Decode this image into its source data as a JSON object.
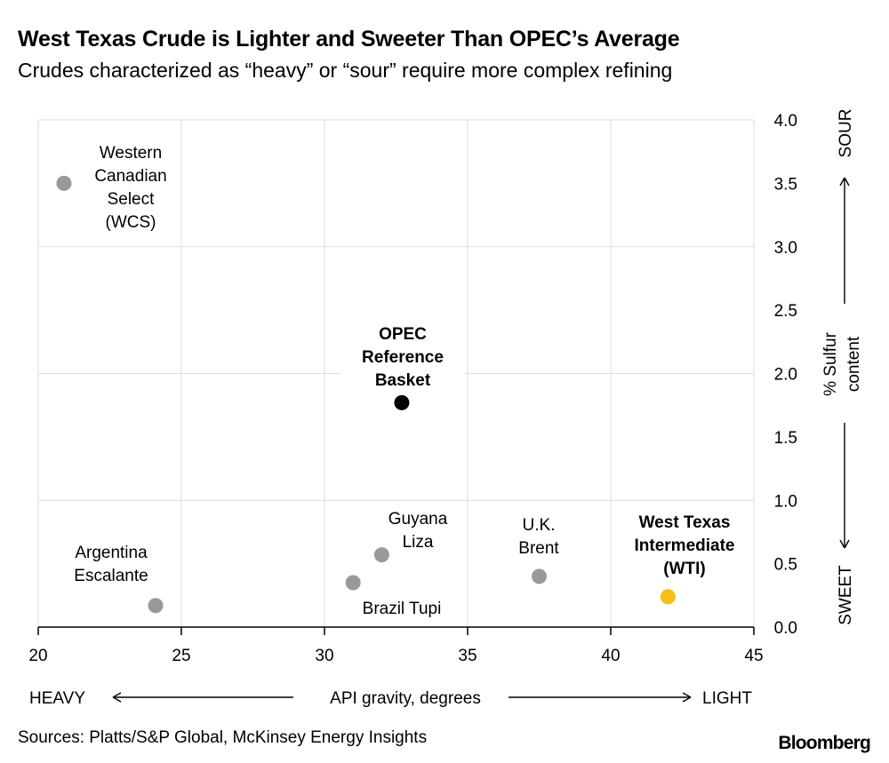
{
  "header": {
    "title": "West Texas Crude is Lighter and Sweeter Than OPEC’s Average",
    "subtitle": "Crudes characterized as “heavy” or “sour” require more complex refining"
  },
  "footer": {
    "source": "Sources: Platts/S&P Global, McKinsey Energy Insights",
    "logo": "Bloomberg"
  },
  "chart_data": {
    "type": "scatter",
    "xlabel": "API gravity, degrees",
    "ylabel": "% Sulfur content",
    "x_left_label": "HEAVY",
    "x_right_label": "LIGHT",
    "y_top_label": "SOUR",
    "y_bottom_label": "SWEET",
    "xlim": [
      20,
      45
    ],
    "ylim": [
      0,
      4
    ],
    "x_ticks": [
      "20",
      "25",
      "30",
      "35",
      "40",
      "45"
    ],
    "y_ticks": [
      "0.0",
      "0.5",
      "1.0",
      "1.5",
      "2.0",
      "2.5",
      "3.0",
      "3.5",
      "4.0"
    ],
    "grid": true,
    "points": [
      {
        "label": [
          "Western",
          "Canadian",
          "Select",
          "(WCS)"
        ],
        "x": 20.9,
        "y": 3.5,
        "color": "#999999",
        "bold": false
      },
      {
        "label": [
          "OPEC",
          "Reference",
          "Basket"
        ],
        "x": 32.7,
        "y": 1.77,
        "color": "#000000",
        "bold": true
      },
      {
        "label": [
          "Argentina",
          "Escalante"
        ],
        "x": 24.1,
        "y": 0.17,
        "color": "#999999",
        "bold": false
      },
      {
        "label": [
          "Guyana",
          "Liza"
        ],
        "x": 32.0,
        "y": 0.57,
        "color": "#999999",
        "bold": false
      },
      {
        "label": [
          "Brazil Tupi"
        ],
        "x": 31.0,
        "y": 0.35,
        "color": "#999999",
        "bold": false
      },
      {
        "label": [
          "U.K.",
          "Brent"
        ],
        "x": 37.5,
        "y": 0.4,
        "color": "#999999",
        "bold": false
      },
      {
        "label": [
          "West Texas",
          "Intermediate",
          "(WTI)"
        ],
        "x": 42.0,
        "y": 0.24,
        "color": "#f5c00f",
        "bold": true
      }
    ]
  }
}
